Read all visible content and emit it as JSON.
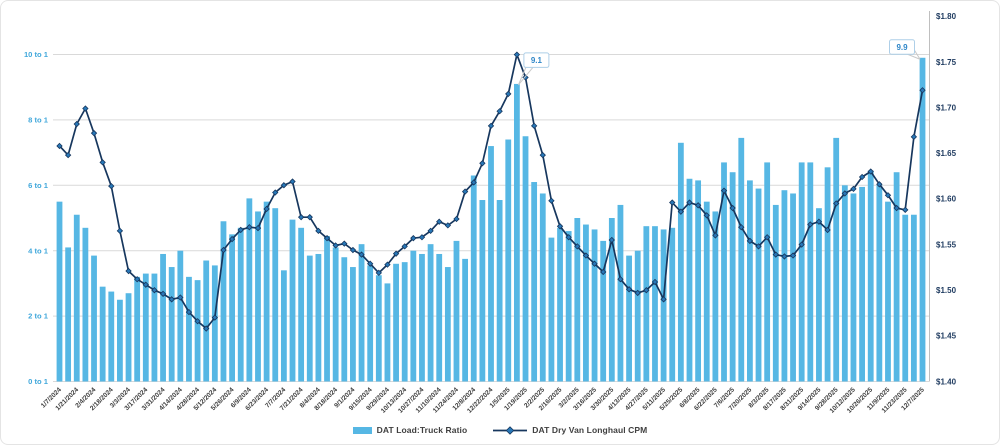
{
  "chart_data": {
    "type": "combo",
    "grid": "horizontal",
    "legend_position": "bottom",
    "x": [
      "1/7/2024",
      "1/14/2024",
      "1/21/2024",
      "1/28/2024",
      "2/4/2024",
      "2/11/2024",
      "2/18/2024",
      "2/25/2024",
      "3/3/2024",
      "3/10/2024",
      "3/17/2024",
      "3/24/2024",
      "3/31/2024",
      "4/7/2024",
      "4/14/2024",
      "4/21/2024",
      "4/28/2024",
      "5/5/2024",
      "5/12/2024",
      "5/19/2024",
      "5/26/2024",
      "6/2/2024",
      "6/9/2024",
      "6/16/2024",
      "6/23/2024",
      "6/30/2024",
      "7/7/2024",
      "7/14/2024",
      "7/21/2024",
      "7/28/2024",
      "8/4/2024",
      "8/11/2024",
      "8/18/2024",
      "8/25/2024",
      "9/1/2024",
      "9/8/2024",
      "9/15/2024",
      "9/22/2024",
      "9/29/2024",
      "10/6/2024",
      "10/13/2024",
      "10/20/2024",
      "10/27/2024",
      "11/3/2024",
      "11/10/2024",
      "11/17/2024",
      "11/24/2024",
      "12/1/2024",
      "12/8/2024",
      "12/15/2024",
      "12/22/2024",
      "12/29/2024",
      "1/5/2025",
      "1/12/2025",
      "1/19/2025",
      "1/26/2025",
      "2/2/2025",
      "2/9/2025",
      "2/16/2025",
      "2/23/2025",
      "3/2/2025",
      "3/9/2025",
      "3/16/2025",
      "3/23/2025",
      "3/30/2025",
      "4/6/2025",
      "4/13/2025",
      "4/20/2025",
      "4/27/2025",
      "5/4/2025",
      "5/11/2025",
      "5/18/2025",
      "5/25/2025",
      "6/1/2025",
      "6/8/2025",
      "6/15/2025",
      "6/22/2025",
      "6/29/2025",
      "7/6/2025",
      "7/13/2025",
      "7/20/2025",
      "7/27/2025",
      "8/3/2025",
      "8/10/2025",
      "8/17/2025",
      "8/24/2025",
      "8/31/2025",
      "9/7/2025",
      "9/14/2025",
      "9/21/2025",
      "9/28/2025",
      "10/5/2025",
      "10/12/2025",
      "10/19/2025",
      "10/26/2025",
      "11/2/2025",
      "11/9/2025",
      "11/16/2025",
      "11/23/2025",
      "11/30/2025",
      "12/7/2025"
    ],
    "x_tick_every": 2,
    "x_tick_labels": [
      "1/7/2024",
      "1/21/2024",
      "2/4/2024",
      "2/18/2024",
      "3/3/2024",
      "3/17/2024",
      "3/31/2024",
      "4/14/2024",
      "4/28/2024",
      "5/12/2024",
      "5/26/2024",
      "6/9/2024",
      "6/23/2024",
      "7/7/2024",
      "7/21/2024",
      "8/4/2024",
      "8/18/2024",
      "9/1/2024",
      "9/15/2024",
      "9/29/2024",
      "10/13/2024",
      "10/27/2024",
      "11/10/2024",
      "11/24/2024",
      "12/8/2024",
      "12/22/2024",
      "1/5/2025",
      "1/19/2025",
      "2/2/2025",
      "2/16/2025",
      "3/2/2025",
      "3/16/2025",
      "3/30/2025",
      "4/13/2025",
      "4/27/2025",
      "5/11/2025",
      "5/25/2025",
      "6/8/2025",
      "6/22/2025",
      "7/6/2025",
      "7/20/2025",
      "8/3/2025",
      "8/17/2025",
      "8/31/2025",
      "9/14/2025",
      "9/28/2025",
      "10/12/2025",
      "10/26/2025",
      "11/9/2025",
      "11/23/2025",
      "12/7/2025"
    ],
    "series": [
      {
        "name": "DAT Load:Truck Ratio",
        "type": "bar",
        "axis": "left",
        "color": "#56B7E4",
        "values": [
          5.5,
          4.1,
          5.1,
          4.7,
          3.85,
          2.9,
          2.75,
          2.5,
          2.7,
          3.2,
          3.3,
          3.3,
          3.9,
          3.5,
          4.0,
          3.2,
          3.1,
          3.7,
          3.55,
          4.9,
          4.5,
          4.7,
          5.6,
          5.2,
          5.5,
          5.3,
          3.4,
          4.95,
          4.7,
          3.85,
          3.9,
          4.45,
          4.1,
          3.8,
          3.5,
          4.2,
          3.55,
          3.25,
          3.0,
          3.6,
          3.65,
          4.0,
          3.9,
          4.2,
          3.9,
          3.5,
          4.3,
          3.75,
          6.3,
          5.55,
          7.2,
          5.55,
          7.4,
          9.1,
          7.5,
          6.1,
          5.75,
          4.4,
          4.7,
          4.6,
          5.0,
          4.8,
          4.65,
          4.3,
          5.0,
          5.4,
          3.85,
          4.0,
          4.75,
          4.75,
          4.65,
          4.7,
          7.3,
          6.2,
          6.15,
          5.5,
          5.2,
          6.7,
          6.4,
          7.45,
          6.15,
          5.9,
          6.7,
          5.4,
          5.85,
          5.75,
          6.7,
          6.7,
          5.3,
          6.55,
          7.45,
          6.0,
          5.75,
          5.95,
          6.45,
          6.0,
          5.5,
          6.4,
          5.1,
          5.1,
          9.9
        ]
      },
      {
        "name": "DAT Dry Van Longhaul CPM",
        "type": "line",
        "axis": "right",
        "color": "#17375E",
        "marker": "diamond",
        "marker_color": "#2878B8",
        "values": [
          1.658,
          1.648,
          1.682,
          1.699,
          1.672,
          1.64,
          1.614,
          1.565,
          1.521,
          1.512,
          1.506,
          1.5,
          1.496,
          1.49,
          1.492,
          1.476,
          1.466,
          1.458,
          1.47,
          1.544,
          1.556,
          1.566,
          1.569,
          1.568,
          1.589,
          1.607,
          1.615,
          1.619,
          1.58,
          1.58,
          1.565,
          1.557,
          1.549,
          1.551,
          1.544,
          1.539,
          1.529,
          1.519,
          1.528,
          1.54,
          1.548,
          1.557,
          1.558,
          1.565,
          1.575,
          1.571,
          1.578,
          1.608,
          1.618,
          1.639,
          1.68,
          1.696,
          1.715,
          1.758,
          1.733,
          1.68,
          1.648,
          1.598,
          1.57,
          1.558,
          1.548,
          1.538,
          1.529,
          1.52,
          1.555,
          1.512,
          1.501,
          1.497,
          1.5,
          1.509,
          1.49,
          1.596,
          1.586,
          1.596,
          1.593,
          1.582,
          1.56,
          1.609,
          1.59,
          1.569,
          1.554,
          1.548,
          1.558,
          1.539,
          1.537,
          1.538,
          1.55,
          1.572,
          1.575,
          1.566,
          1.595,
          1.606,
          1.611,
          1.624,
          1.63,
          1.616,
          1.604,
          1.59,
          1.588,
          1.668,
          1.719
        ]
      }
    ],
    "left_axis": {
      "ticks": [
        "0 to 1",
        "2 to 1",
        "4 to 1",
        "6 to 1",
        "8 to 1",
        "10 to 1"
      ],
      "min": 0,
      "max": 10,
      "tick_step": 2,
      "label_color": "#3FA7DB"
    },
    "right_axis": {
      "ticks": [
        "$1.40",
        "$1.45",
        "$1.50",
        "$1.55",
        "$1.60",
        "$1.65",
        "$1.70",
        "$1.75",
        "$1.80"
      ],
      "min": 1.4,
      "max": 1.8,
      "tick_step": 0.05,
      "label_color": "#1E3A5F"
    },
    "annotations": [
      {
        "label": "9.1",
        "series": "DAT Load:Truck Ratio",
        "x": "1/12/2025",
        "value": 9.1
      },
      {
        "label": "9.9",
        "series": "DAT Load:Truck Ratio",
        "x": "12/7/2025",
        "value": 9.9
      }
    ],
    "colors": {
      "gridline": "#D9D9D9",
      "axis_line": "#BFBFBF",
      "x_label": "#3F3F3F",
      "callout_text": "#2E86C8",
      "callout_border": "#AECFE8",
      "callout_leader": "#C9C9C9"
    }
  },
  "legend": {
    "bar_label": "DAT Load:Truck Ratio",
    "line_label": "DAT Dry Van Longhaul CPM"
  }
}
